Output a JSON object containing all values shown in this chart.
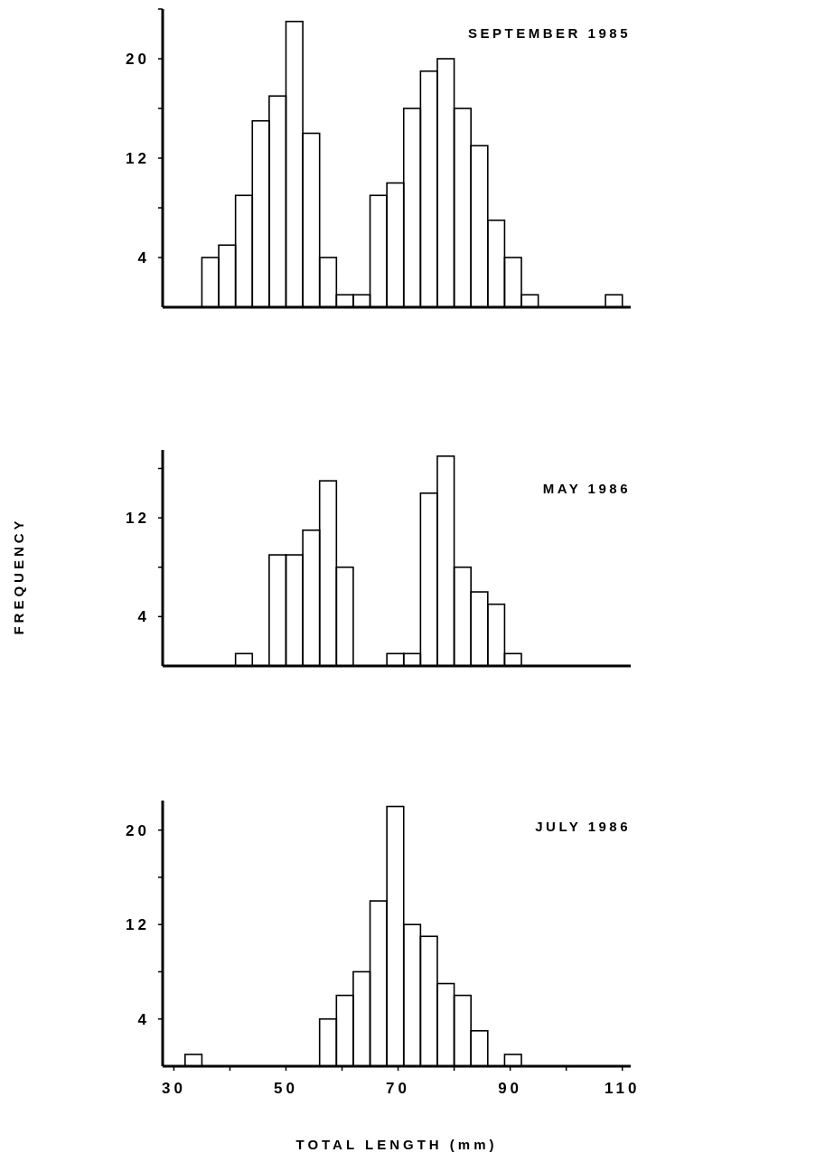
{
  "chart_data": [
    {
      "type": "histogram",
      "title": "SEPTEMBER 1985",
      "bins": [
        35,
        38,
        41,
        44,
        47,
        50,
        53,
        56,
        59,
        62,
        65,
        68,
        71,
        74,
        77,
        80,
        83,
        86,
        89,
        92,
        95,
        98,
        101,
        104,
        107,
        110
      ],
      "values": [
        4,
        5,
        9,
        15,
        17,
        23,
        14,
        4,
        1,
        1,
        9,
        10,
        16,
        19,
        20,
        16,
        13,
        7,
        4,
        1,
        0,
        0,
        0,
        0,
        1
      ],
      "color": "#000000",
      "xlim": [
        28,
        111.5
      ],
      "ylim": [
        0,
        24
      ],
      "yticks": [
        4,
        {
          "value": 8,
          "label": null
        },
        12,
        {
          "value": 16,
          "label": null
        },
        20,
        {
          "value": 24,
          "label": null
        }
      ],
      "tick_labels": "y"
    },
    {
      "type": "histogram",
      "title": "MAY 1986",
      "ylabel": "FREQUENCY",
      "bins": [
        41,
        44,
        47,
        50,
        53,
        56,
        59,
        62,
        65,
        68,
        71,
        74,
        77,
        80,
        83,
        86,
        89,
        92
      ],
      "values": [
        1,
        0,
        9,
        9,
        11,
        15,
        8,
        0,
        0,
        1,
        1,
        14,
        17,
        8,
        6,
        5,
        1
      ],
      "color": "#000000",
      "xlim": [
        28,
        111.5
      ],
      "ylim": [
        0,
        17.5
      ],
      "yticks": [
        4,
        {
          "value": 8,
          "label": null
        },
        12,
        {
          "value": 16,
          "label": null
        }
      ],
      "tick_labels": "y"
    },
    {
      "type": "histogram",
      "title": "JULY 1986",
      "xlabel": "TOTAL LENGTH (mm)",
      "bins": [
        32,
        35,
        38,
        41,
        44,
        47,
        50,
        53,
        56,
        59,
        62,
        65,
        68,
        71,
        74,
        77,
        80,
        83,
        86,
        89,
        92
      ],
      "values": [
        1,
        0,
        0,
        0,
        0,
        0,
        0,
        0,
        4,
        6,
        8,
        14,
        22,
        12,
        11,
        7,
        6,
        3,
        0,
        1
      ],
      "color": "#000000",
      "xlim": [
        28,
        111.5
      ],
      "ylim": [
        0,
        22.5
      ],
      "xticks": [
        30,
        {
          "value": 40,
          "label": null
        },
        50,
        {
          "value": 60,
          "label": null
        },
        70,
        {
          "value": 80,
          "label": null
        },
        90,
        {
          "value": 100,
          "label": null
        },
        110
      ],
      "yticks": [
        4,
        {
          "value": 8,
          "label": null
        },
        12,
        {
          "value": 16,
          "label": null
        },
        20
      ]
    }
  ]
}
